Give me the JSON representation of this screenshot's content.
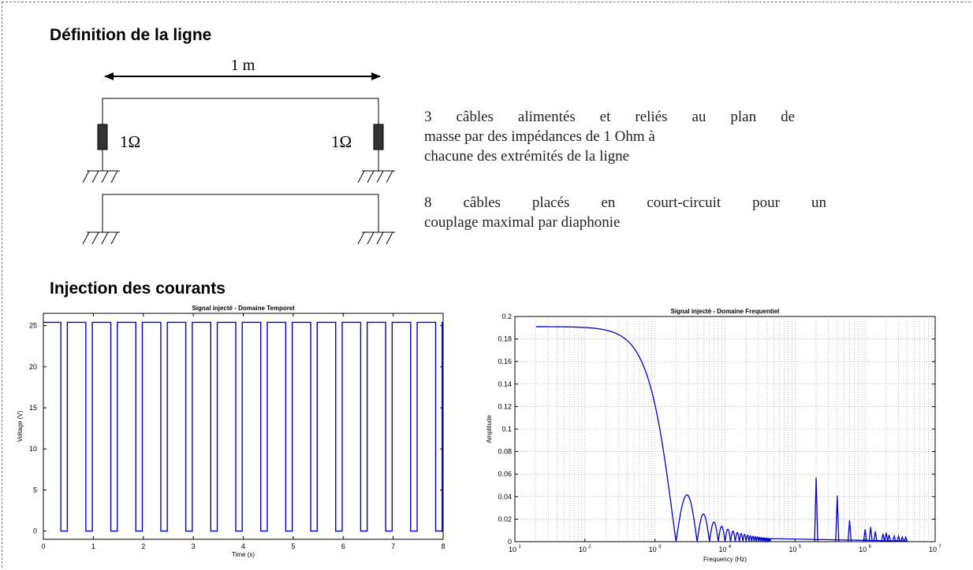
{
  "sections": {
    "line_definition": "Définition de la ligne",
    "current_injection": "Injection des courants"
  },
  "schematic": {
    "length_label": "1 m",
    "left_resistor_label": "1Ω",
    "right_resistor_label": "1Ω"
  },
  "descriptions": {
    "powered_line1": "3 câbles alimentés et reliés au plan de",
    "powered_line2": "masse par des impédances de 1 Ohm à",
    "powered_line3": "chacune des extrémités de la ligne",
    "shorted_line1": "8 câbles placés en court-circuit pour un",
    "shorted_line2": "couplage maximal par diaphonie"
  },
  "chart_data": [
    {
      "type": "line",
      "title": "Signal injecté - Domaine Temporel",
      "xlabel": "Time (s)",
      "ylabel": "Voltage (V)",
      "xlim": [
        0,
        8
      ],
      "ylim": [
        -1,
        26.5
      ],
      "xticks": [
        "0",
        "1",
        "2",
        "3",
        "4",
        "5",
        "6",
        "7",
        "8"
      ],
      "yticks": [
        "0",
        "5",
        "10",
        "15",
        "20",
        "25"
      ],
      "grid": false,
      "series": [
        {
          "color": "#0000cc",
          "kind": "square-wave",
          "high": 25.4,
          "low": 0,
          "period": 0.5,
          "low_start": 0.35,
          "low_end": 0.48
        }
      ]
    },
    {
      "type": "line",
      "title": "Signal injecté - Domaine Frequentiel",
      "xlabel": "Frequency (Hz)",
      "ylabel": "Amplitude",
      "xscale": "log",
      "xlim": [
        10,
        10000000
      ],
      "ylim": [
        0,
        0.2
      ],
      "xtick_exponents": [
        "1",
        "2",
        "3",
        "4",
        "5",
        "6",
        "7"
      ],
      "yticks": [
        "0",
        "0.02",
        "0.04",
        "0.06",
        "0.08",
        "0.1",
        "0.12",
        "0.14",
        "0.16",
        "0.18",
        "0.2"
      ],
      "grid": true,
      "series": [
        {
          "color": "#0000cc",
          "kind": "sinc-envelope",
          "dc_amplitude": 0.191,
          "first_null_hz": 2000,
          "peaks": [
            {
              "x": 200000,
              "y": 0.057
            },
            {
              "x": 400000,
              "y": 0.041
            },
            {
              "x": 600000,
              "y": 0.019
            },
            {
              "x": 1000000,
              "y": 0.011
            },
            {
              "x": 1200000,
              "y": 0.013
            },
            {
              "x": 1400000,
              "y": 0.009
            },
            {
              "x": 1800000,
              "y": 0.007
            },
            {
              "x": 2000000,
              "y": 0.008
            },
            {
              "x": 2200000,
              "y": 0.006
            },
            {
              "x": 2600000,
              "y": 0.005
            },
            {
              "x": 3000000,
              "y": 0.005
            },
            {
              "x": 3400000,
              "y": 0.004
            },
            {
              "x": 3800000,
              "y": 0.004
            }
          ]
        }
      ]
    }
  ]
}
